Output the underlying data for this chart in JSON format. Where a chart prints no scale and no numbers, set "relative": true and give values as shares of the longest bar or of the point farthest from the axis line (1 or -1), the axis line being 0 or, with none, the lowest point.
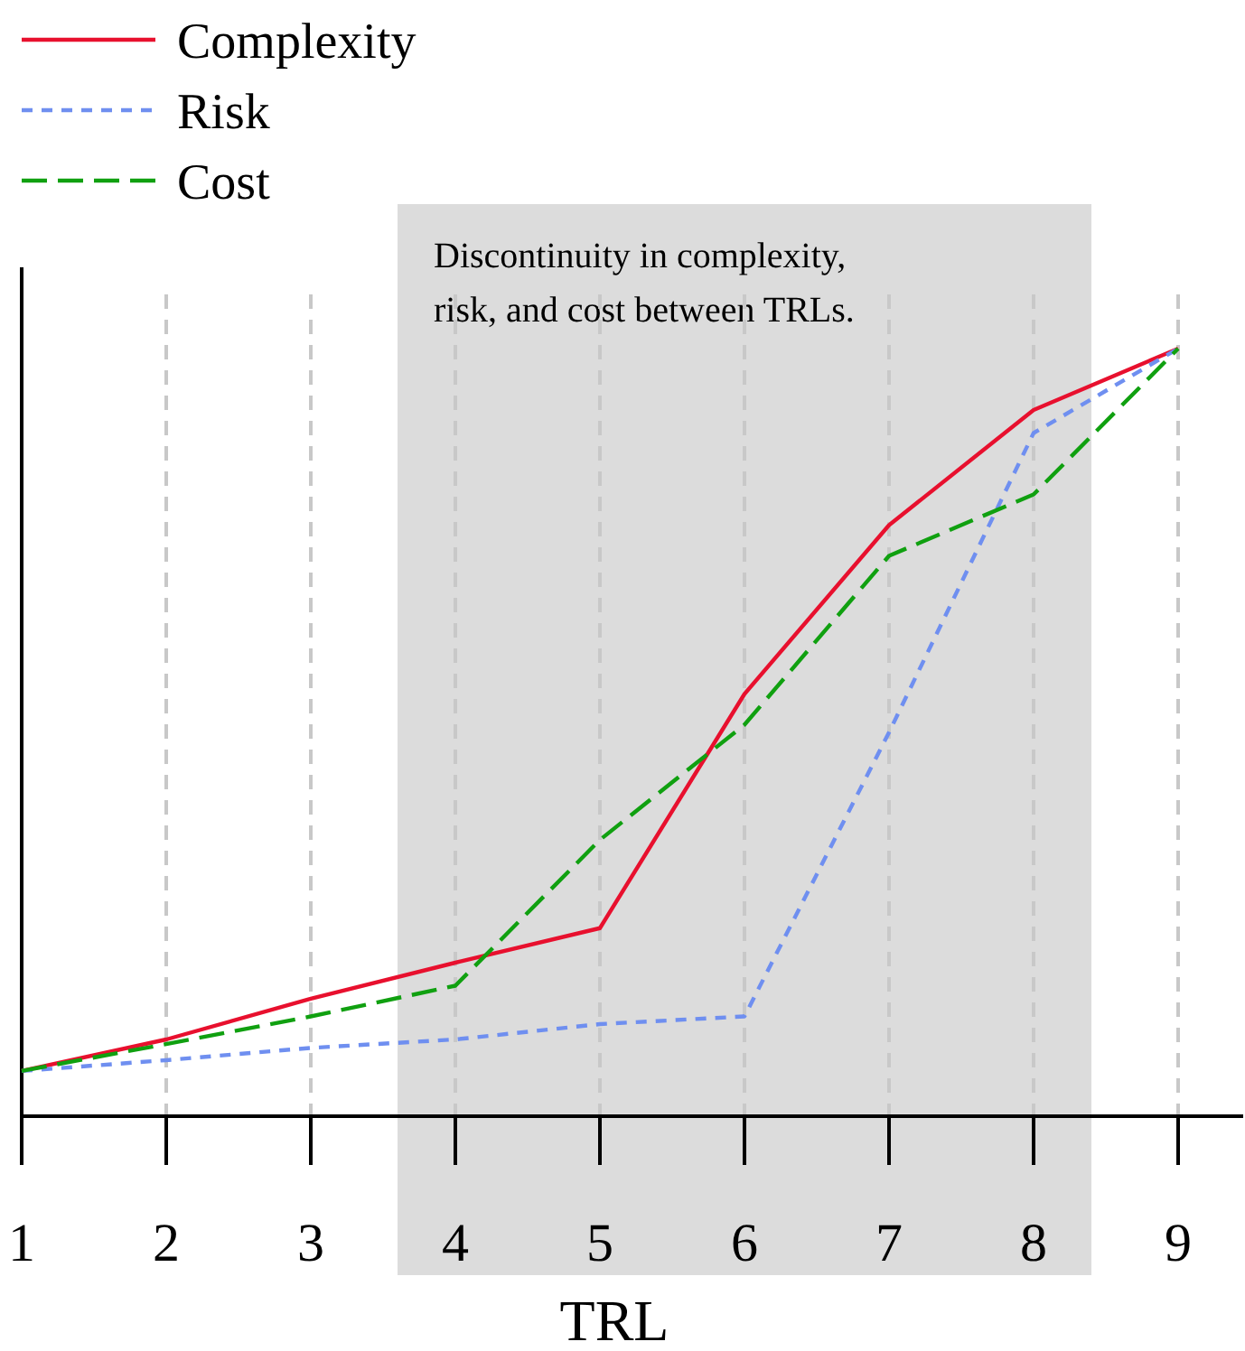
{
  "chart_data": {
    "type": "line",
    "relative": true,
    "xlabel": "TRL",
    "x": [
      1,
      2,
      3,
      4,
      5,
      6,
      7,
      8,
      9
    ],
    "xlim": [
      1,
      9.45
    ],
    "xticks": [
      1,
      2,
      3,
      4,
      5,
      6,
      7,
      8,
      9
    ],
    "grid": "x",
    "legend": "top left",
    "marker": "none",
    "bands": [
      {
        "axis": "x",
        "from": 3.6,
        "to": 8.4,
        "label": "Discontinuity in complexity, risk, and cost between TRLs.",
        "color": "#dcdcdc"
      }
    ],
    "series": [
      {
        "name": "Complexity",
        "color": "#e8102e",
        "line_style": "solid",
        "values": [
          0.059,
          0.1,
          0.153,
          0.2,
          0.245,
          0.55,
          0.77,
          0.92,
          1
        ]
      },
      {
        "name": "Risk",
        "color": "#6f8ff0",
        "line_style": "dotted",
        "values": [
          0.059,
          0.073,
          0.089,
          0.1,
          0.12,
          0.13,
          0.5,
          0.89,
          1
        ]
      },
      {
        "name": "Cost",
        "color": "#10a010",
        "line_style": "dashed",
        "values": [
          0.059,
          0.094,
          0.13,
          0.17,
          0.36,
          0.51,
          0.73,
          0.81,
          1
        ]
      }
    ]
  }
}
